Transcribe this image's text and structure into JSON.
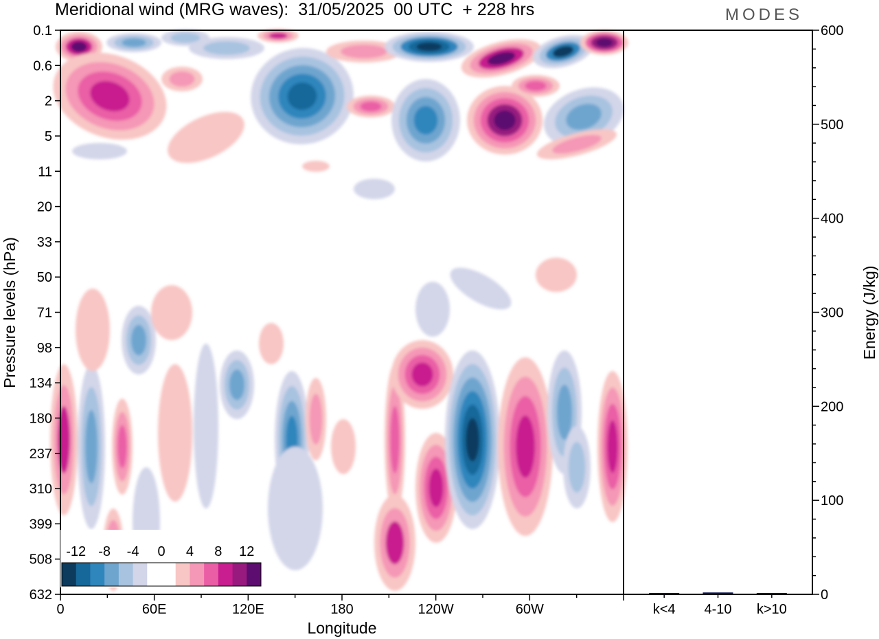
{
  "header": {
    "title": "Meridional wind (MRG waves):  31/05/2025  00 UTC  + 228 hrs",
    "logo": "MODES"
  },
  "chart_data": [
    {
      "type": "heatmap",
      "title": "Meridional wind (MRG waves):  31/05/2025  00 UTC  + 228 hrs",
      "xlabel": "Longitude",
      "ylabel": "Pressure levels (hPa)",
      "x_ticks": [
        "0",
        "60E",
        "120E",
        "180",
        "120W",
        "60W"
      ],
      "y_ticks": [
        "0.1",
        "0.6",
        "2",
        "5",
        "11",
        "20",
        "33",
        "50",
        "71",
        "98",
        "134",
        "180",
        "237",
        "310",
        "399",
        "508",
        "632"
      ],
      "colorbar": {
        "tick_labels": [
          "-12",
          "-8",
          "-4",
          "0",
          "4",
          "8",
          "12"
        ],
        "colors": [
          "#0d3b5e",
          "#16689a",
          "#2f86bd",
          "#6ea5cf",
          "#a8c3e0",
          "#d3d6e9",
          "#ffffff",
          "#ffffff",
          "#f8c6c4",
          "#f597b6",
          "#ea5ea6",
          "#c81e8f",
          "#981a7f",
          "#5c0d6f"
        ]
      }
    },
    {
      "type": "bar",
      "ylabel": "Energy (J/kg)",
      "categories": [
        "k<4",
        "4-10",
        "k>10"
      ],
      "values": [
        0.5,
        2,
        0.3
      ],
      "ylim": [
        0,
        600
      ],
      "y_ticks": [
        "0",
        "100",
        "200",
        "300",
        "400",
        "500",
        "600"
      ],
      "bar_color": "#0d1452"
    }
  ],
  "colors": {
    "blue_dark": "#0d3b5e",
    "pink_dark": "#5c0d6f"
  }
}
